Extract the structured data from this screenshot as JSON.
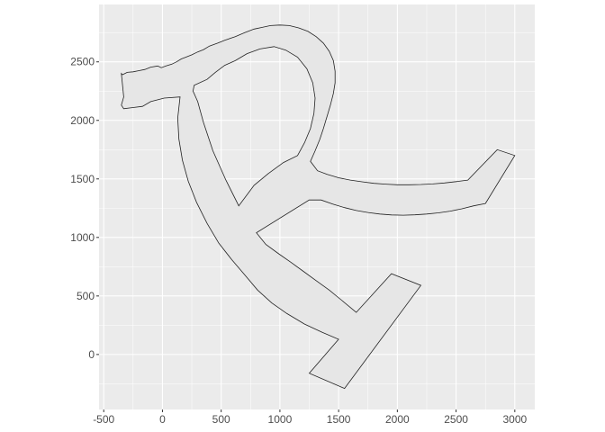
{
  "chart_data": {
    "type": "polygon",
    "title": "",
    "xlabel": "",
    "ylabel": "",
    "xlim": [
      -540,
      3170
    ],
    "ylim": [
      -470,
      2990
    ],
    "x_ticks": [
      -500,
      0,
      500,
      1000,
      1500,
      2000,
      2500,
      3000
    ],
    "y_ticks": [
      0,
      500,
      1000,
      1500,
      2000,
      2500
    ],
    "x_minor": [
      -250,
      250,
      750,
      1250,
      1750,
      2250,
      2750
    ],
    "y_minor": [
      -250,
      250,
      750,
      1250,
      1750,
      2250,
      2750
    ],
    "grid": true,
    "panel_color": "#ebebeb",
    "grid_color": "#ffffff",
    "fill_color": "#e6e6e6",
    "outline_color": "#222222",
    "polygon": [
      [
        -350,
        2400
      ],
      [
        -340,
        2390
      ],
      [
        -300,
        2410
      ],
      [
        -250,
        2415
      ],
      [
        -200,
        2425
      ],
      [
        -150,
        2435
      ],
      [
        -100,
        2455
      ],
      [
        -40,
        2465
      ],
      [
        -10,
        2450
      ],
      [
        30,
        2465
      ],
      [
        80,
        2480
      ],
      [
        120,
        2500
      ],
      [
        160,
        2525
      ],
      [
        200,
        2540
      ],
      [
        250,
        2560
      ],
      [
        300,
        2585
      ],
      [
        350,
        2605
      ],
      [
        400,
        2635
      ],
      [
        470,
        2660
      ],
      [
        530,
        2685
      ],
      [
        620,
        2715
      ],
      [
        700,
        2750
      ],
      [
        780,
        2780
      ],
      [
        850,
        2795
      ],
      [
        920,
        2810
      ],
      [
        1000,
        2815
      ],
      [
        1080,
        2810
      ],
      [
        1160,
        2790
      ],
      [
        1240,
        2760
      ],
      [
        1310,
        2715
      ],
      [
        1370,
        2660
      ],
      [
        1420,
        2590
      ],
      [
        1455,
        2510
      ],
      [
        1470,
        2420
      ],
      [
        1470,
        2320
      ],
      [
        1455,
        2230
      ],
      [
        1430,
        2130
      ],
      [
        1400,
        2030
      ],
      [
        1370,
        1930
      ],
      [
        1340,
        1840
      ],
      [
        1300,
        1740
      ],
      [
        1260,
        1650
      ],
      [
        1320,
        1570
      ],
      [
        1400,
        1540
      ],
      [
        1500,
        1510
      ],
      [
        1600,
        1490
      ],
      [
        1700,
        1475
      ],
      [
        1800,
        1462
      ],
      [
        1900,
        1455
      ],
      [
        2000,
        1450
      ],
      [
        2100,
        1450
      ],
      [
        2200,
        1452
      ],
      [
        2300,
        1457
      ],
      [
        2400,
        1465
      ],
      [
        2500,
        1477
      ],
      [
        2600,
        1490
      ],
      [
        2850,
        1750
      ],
      [
        3000,
        1700
      ],
      [
        2750,
        1290
      ],
      [
        2650,
        1270
      ],
      [
        2550,
        1245
      ],
      [
        2450,
        1225
      ],
      [
        2350,
        1210
      ],
      [
        2250,
        1200
      ],
      [
        2150,
        1193
      ],
      [
        2050,
        1190
      ],
      [
        1950,
        1192
      ],
      [
        1850,
        1200
      ],
      [
        1750,
        1213
      ],
      [
        1650,
        1230
      ],
      [
        1550,
        1255
      ],
      [
        1450,
        1285
      ],
      [
        1350,
        1320
      ],
      [
        1250,
        1320
      ],
      [
        800,
        1040
      ],
      [
        880,
        940
      ],
      [
        990,
        860
      ],
      [
        1090,
        790
      ],
      [
        1200,
        710
      ],
      [
        1310,
        630
      ],
      [
        1420,
        550
      ],
      [
        1530,
        460
      ],
      [
        1650,
        360
      ],
      [
        1950,
        690
      ],
      [
        2200,
        590
      ],
      [
        1550,
        -290
      ],
      [
        1250,
        -160
      ],
      [
        1500,
        130
      ],
      [
        1360,
        190
      ],
      [
        1210,
        260
      ],
      [
        1060,
        350
      ],
      [
        930,
        440
      ],
      [
        810,
        550
      ],
      [
        700,
        680
      ],
      [
        590,
        810
      ],
      [
        480,
        950
      ],
      [
        380,
        1120
      ],
      [
        290,
        1300
      ],
      [
        220,
        1480
      ],
      [
        170,
        1660
      ],
      [
        140,
        1840
      ],
      [
        130,
        2020
      ],
      [
        150,
        2200
      ],
      [
        15,
        2190
      ],
      [
        -100,
        2160
      ],
      [
        -170,
        2120
      ],
      [
        -250,
        2110
      ],
      [
        -330,
        2100
      ],
      [
        -350,
        2130
      ],
      [
        -330,
        2200
      ],
      [
        -340,
        2300
      ]
    ],
    "holes": [
      [
        [
          270,
          2300
        ],
        [
          380,
          2350
        ],
        [
          450,
          2410
        ],
        [
          530,
          2470
        ],
        [
          620,
          2510
        ],
        [
          720,
          2570
        ],
        [
          830,
          2610
        ],
        [
          950,
          2630
        ],
        [
          1050,
          2600
        ],
        [
          1150,
          2540
        ],
        [
          1230,
          2440
        ],
        [
          1280,
          2320
        ],
        [
          1300,
          2190
        ],
        [
          1290,
          2060
        ],
        [
          1260,
          1930
        ],
        [
          1210,
          1810
        ],
        [
          1150,
          1700
        ],
        [
          1030,
          1640
        ],
        [
          900,
          1545
        ],
        [
          780,
          1445
        ],
        [
          650,
          1270
        ],
        [
          540,
          1490
        ],
        [
          430,
          1740
        ],
        [
          350,
          1980
        ],
        [
          300,
          2160
        ],
        [
          260,
          2250
        ]
      ]
    ]
  }
}
